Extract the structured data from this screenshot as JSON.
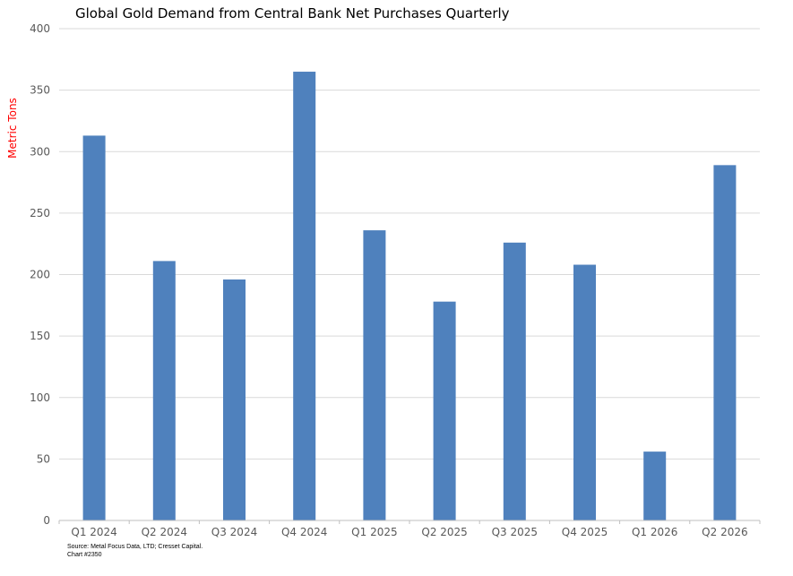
{
  "chart_data": {
    "type": "bar",
    "title": "Global Gold Demand from Central Bank Net Purchases Quarterly",
    "xlabel": "",
    "ylabel": "Metric Tons",
    "ylim": [
      0,
      400
    ],
    "yticks": [
      0,
      50,
      100,
      150,
      200,
      250,
      300,
      350,
      400
    ],
    "categories": [
      "Q1 2024",
      "Q2 2024",
      "Q3 2024",
      "Q4 2024",
      "Q1 2025",
      "Q2 2025",
      "Q3 2025",
      "Q4 2025",
      "Q1 2026",
      "Q2 2026"
    ],
    "values": [
      313,
      211,
      196,
      365,
      236,
      178,
      226,
      208,
      56,
      289
    ],
    "grid": true,
    "legend": "none",
    "colors": {
      "bar": "#4f81bd",
      "ylabel": "#ff0000",
      "grid": "#d9d9d9",
      "axis": "#bfbfbf"
    }
  },
  "footer": {
    "source": "Source: Metal Focus Data, LTD; Cresset Capital.",
    "chart_id": "Chart #2350"
  }
}
